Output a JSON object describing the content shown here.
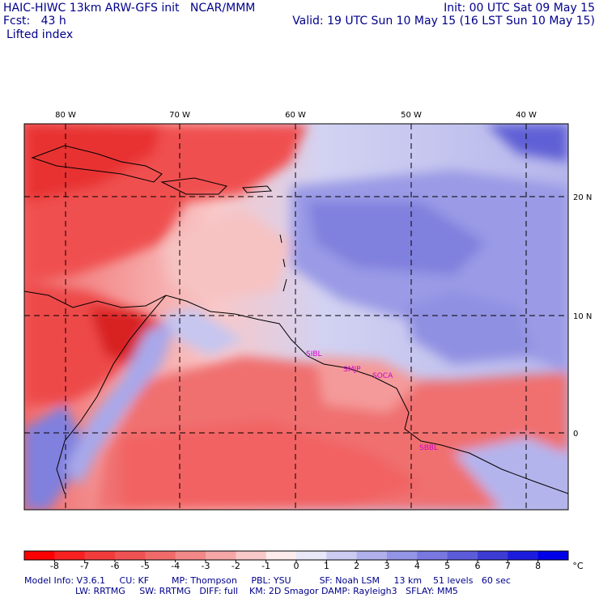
{
  "header": {
    "model_line": "HAIC-HIWC 13km ARW-GFS init   NCAR/MMM",
    "fcst_line": "Fcst:   43 h",
    "field": "Lifted index",
    "init": "Init: 00 UTC Sat 09 May 15",
    "valid": "Valid: 19 UTC Sun 10 May 15 (16 LST Sun 10 May 15)"
  },
  "map": {
    "lon_labels": [
      "80 W",
      "70 W",
      "60 W",
      "50 W",
      "40 W"
    ],
    "lat_labels": [
      "20 N",
      "10 N",
      "0"
    ],
    "stations": [
      "SIBL",
      "SMJP",
      "SOCA",
      "SBBL"
    ]
  },
  "colorbar": {
    "labels": [
      "-8",
      "-7",
      "-6",
      "-5",
      "-4",
      "-3",
      "-2",
      "-1",
      "0",
      "1",
      "2",
      "3",
      "4",
      "5",
      "6",
      "7",
      "8"
    ],
    "unit": "°C",
    "colors": [
      "#ff0000",
      "#f82020",
      "#f23c3c",
      "#ef5252",
      "#f06a6a",
      "#f28888",
      "#f5a6a6",
      "#f9c8c8",
      "#fdecec",
      "#e8e8f8",
      "#ccccf2",
      "#b0b0ec",
      "#9494e6",
      "#7878e0",
      "#5c5cda",
      "#3c3cd4",
      "#1c1cdf",
      "#0000e8"
    ]
  },
  "footer": {
    "line1": "Model Info: V3.6.1     CU: KF        MP: Thompson     PBL: YSU          SF: Noah LSM     13 km    51 levels   60 sec",
    "line2": "                  LW: RRTMG     SW: RRTMG   DIFF: full    KM: 2D Smagor DAMP: Rayleigh3   SFLAY: MM5"
  }
}
